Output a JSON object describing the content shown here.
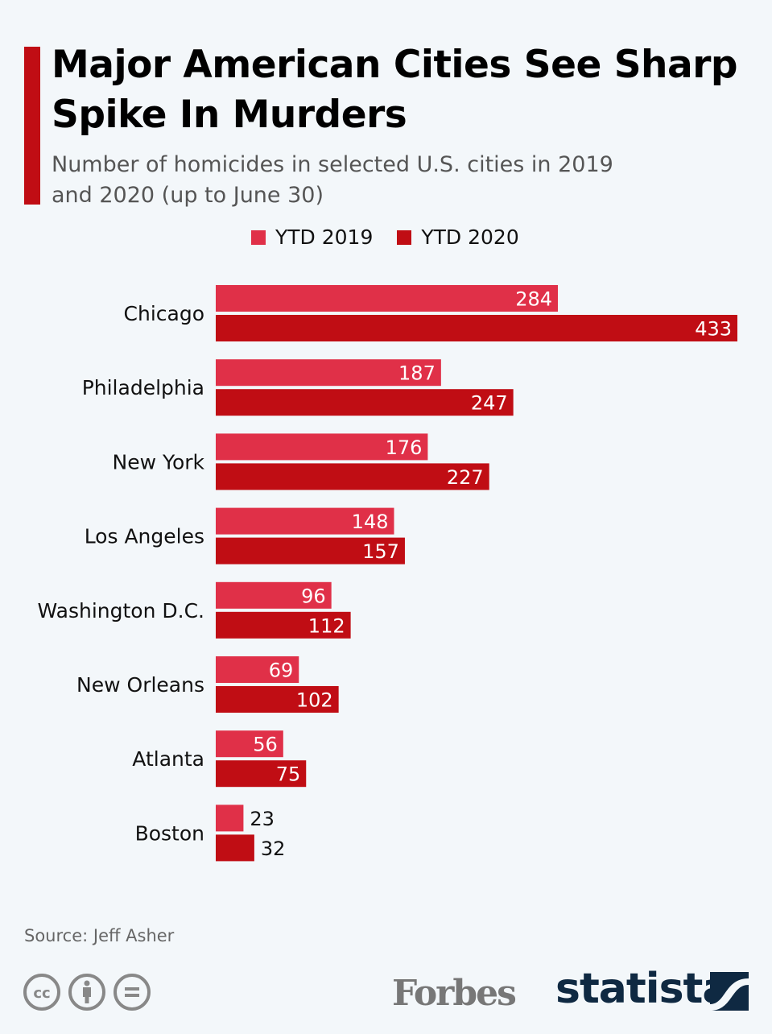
{
  "chart_data": {
    "type": "bar",
    "orientation": "horizontal",
    "title": "Major American Cities See Sharp Spike In Murders",
    "subtitle": "Number of homicides in selected U.S. cities in 2019 and 2020 (up to June 30)",
    "categories": [
      "Chicago",
      "Philadelphia",
      "New York",
      "Los Angeles",
      "Washington D.C.",
      "New Orleans",
      "Atlanta",
      "Boston"
    ],
    "series": [
      {
        "name": "YTD 2019",
        "color": "#e03048",
        "values": [
          284,
          187,
          176,
          148,
          96,
          69,
          56,
          23
        ]
      },
      {
        "name": "YTD 2020",
        "color": "#c00d14",
        "values": [
          433,
          247,
          227,
          157,
          112,
          102,
          75,
          32
        ]
      }
    ],
    "xlim": [
      0,
      433
    ],
    "grid": false,
    "legend_position": "top"
  },
  "source": "Source: Jeff Asher",
  "logos": {
    "forbes": "Forbes",
    "statista": "statista"
  },
  "icons": [
    "cc-icon",
    "attribution-icon",
    "no-derivatives-icon"
  ]
}
